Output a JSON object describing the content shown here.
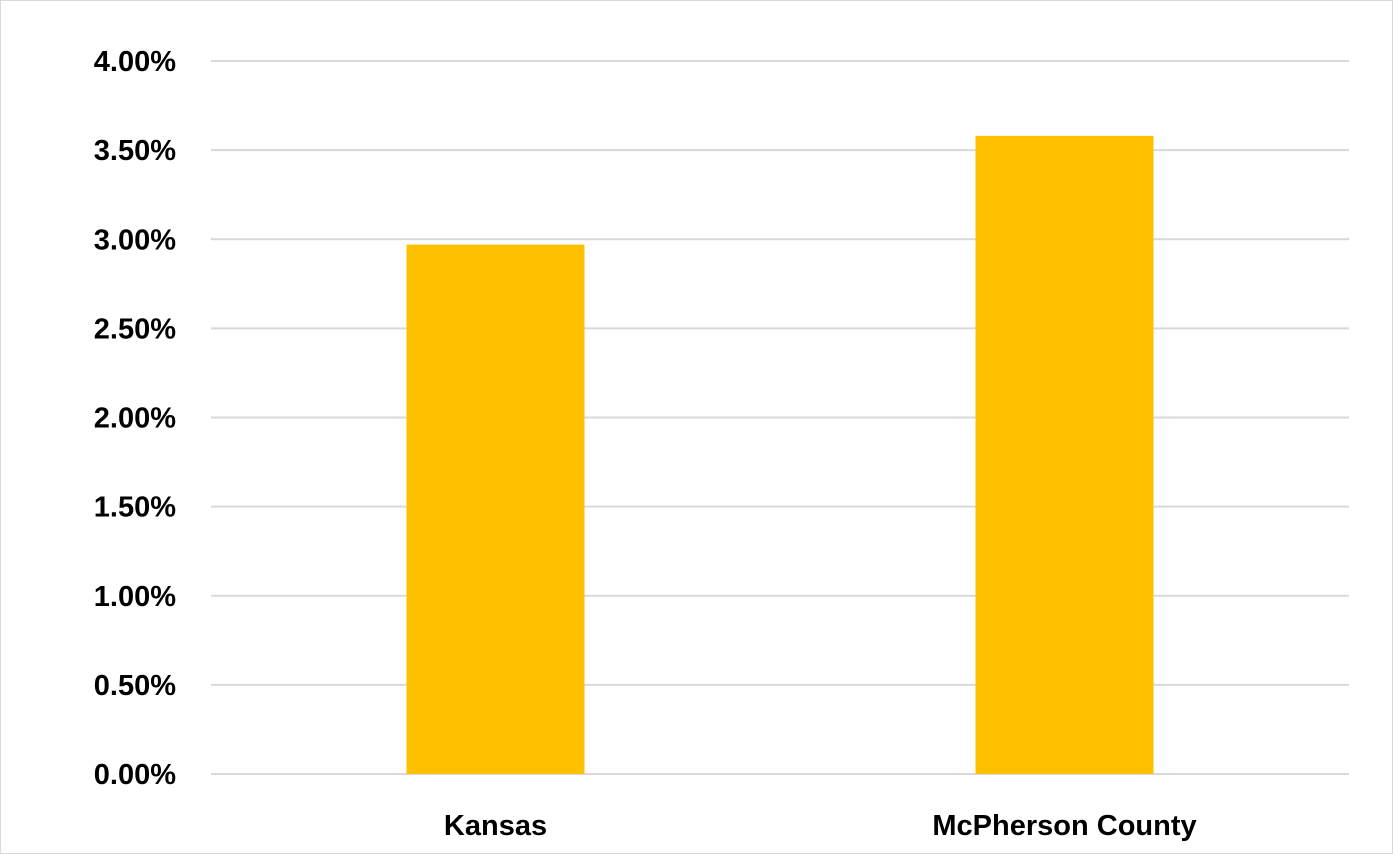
{
  "chart_data": {
    "type": "bar",
    "categories": [
      "Kansas",
      "McPherson County"
    ],
    "values": [
      0.0297,
      0.0358
    ],
    "title": "",
    "xlabel": "",
    "ylabel": "",
    "ylim": [
      0,
      0.04
    ],
    "y_ticks": [
      0,
      0.005,
      0.01,
      0.015,
      0.02,
      0.025,
      0.03,
      0.035,
      0.04
    ],
    "y_tick_labels": [
      "0.00%",
      "0.50%",
      "1.00%",
      "1.50%",
      "2.00%",
      "2.50%",
      "3.00%",
      "3.50%",
      "4.00%"
    ],
    "grid": true,
    "legend": "none",
    "bar_color": "#FFC000",
    "grid_color": "#D9D9D9"
  }
}
